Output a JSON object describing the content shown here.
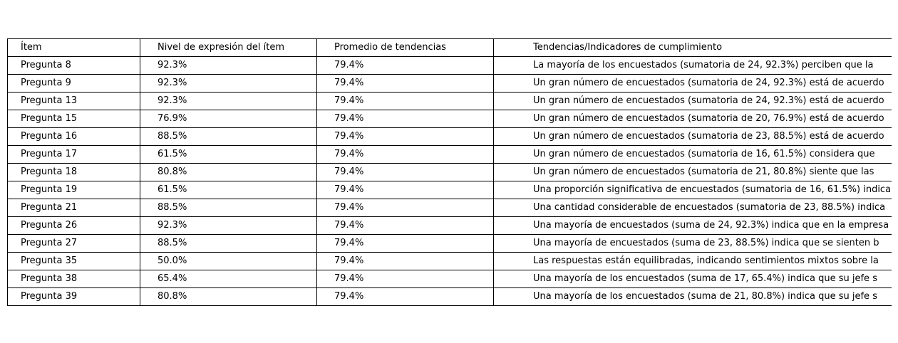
{
  "chart_data": {
    "type": "table",
    "columns": [
      "Ítem",
      "Nivel de expresión del ítem",
      "Promedio de tendencias",
      "Tendencias/Indicadores de cumplimiento"
    ],
    "rows": [
      [
        "Pregunta 8",
        "92.3%",
        "79.4%",
        "La mayoría de los encuestados (sumatoria de 24, 92.3%) perciben que la"
      ],
      [
        "Pregunta 9",
        "92.3%",
        "79.4%",
        "Un gran número de encuestados (sumatoria de 24, 92.3%) está de acuerdo"
      ],
      [
        "Pregunta 13",
        "92.3%",
        "79.4%",
        "Un gran número de encuestados (sumatoria de 24, 92.3%) está de acuerdo"
      ],
      [
        "Pregunta 15",
        "76.9%",
        "79.4%",
        "Un gran número de encuestados (sumatoria de 20, 76.9%) está de acuerdo"
      ],
      [
        "Pregunta 16",
        "88.5%",
        "79.4%",
        "Un gran número de encuestados (sumatoria de 23, 88.5%) está de acuerdo"
      ],
      [
        "Pregunta 17",
        "61.5%",
        "79.4%",
        "Un gran número de encuestados (sumatoria de 16, 61.5%) considera que"
      ],
      [
        "Pregunta 18",
        "80.8%",
        "79.4%",
        "Un gran número de encuestados (sumatoria de 21, 80.8%) siente que las"
      ],
      [
        "Pregunta 19",
        "61.5%",
        "79.4%",
        "Una proporción significativa de encuestados (sumatoria de 16, 61.5%) indica"
      ],
      [
        "Pregunta 21",
        "88.5%",
        "79.4%",
        "Una cantidad considerable de encuestados (sumatoria de 23, 88.5%) indica"
      ],
      [
        "Pregunta 26",
        "92.3%",
        "79.4%",
        "Una mayoría de encuestados (suma de 24, 92.3%) indica que en la empresa"
      ],
      [
        "Pregunta 27",
        "88.5%",
        "79.4%",
        "Una mayoría de encuestados (suma de 23, 88.5%) indica que se sienten b"
      ],
      [
        "Pregunta 35",
        "50.0%",
        "79.4%",
        "Las respuestas están equilibradas, indicando sentimientos mixtos sobre la"
      ],
      [
        "Pregunta 38",
        "65.4%",
        "79.4%",
        "Una mayoría de los encuestados (suma de 17, 65.4%) indica que su jefe s"
      ],
      [
        "Pregunta 39",
        "80.8%",
        "79.4%",
        "Una mayoría de los encuestados (suma de 21, 80.8%) indica que su jefe s"
      ]
    ]
  }
}
